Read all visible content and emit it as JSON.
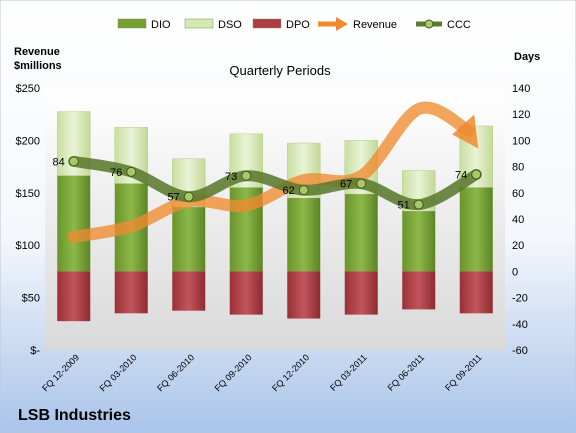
{
  "chart_data": {
    "type": "bar",
    "title": "Quarterly Periods",
    "company": "LSB Industries",
    "left_axis_label_line1": "Revenue",
    "left_axis_label_line2": "$millions",
    "right_axis_label": "Days",
    "categories": [
      "FQ 12-2009",
      "FQ 03-2010",
      "FQ 06-2010",
      "FQ 09-2010",
      "FQ 12-2010",
      "FQ 03-2011",
      "FQ 06-2011",
      "FQ 09-2011"
    ],
    "left_ticks": [
      "$-",
      "$50",
      "$100",
      "$150",
      "$200",
      "$250"
    ],
    "left_tick_values": [
      0,
      50,
      100,
      150,
      200,
      250
    ],
    "right_ticks": [
      "-60",
      "-40",
      "-20",
      "0",
      "20",
      "40",
      "60",
      "80",
      "100",
      "120",
      "140"
    ],
    "right_tick_values": [
      -60,
      -40,
      -20,
      0,
      20,
      40,
      60,
      80,
      100,
      120,
      140
    ],
    "ylim_left": [
      0,
      250
    ],
    "ylim_right": [
      -60,
      140
    ],
    "legend_position": "top",
    "series": [
      {
        "name": "DIO",
        "axis": "right",
        "kind": "bar",
        "color": "#77a033",
        "values": [
          73,
          67,
          49,
          64,
          56,
          59,
          46,
          64
        ]
      },
      {
        "name": "DSO",
        "axis": "right",
        "kind": "bar",
        "color": "#d5e8b0",
        "values": [
          49,
          43,
          37,
          41,
          42,
          41,
          31,
          47
        ]
      },
      {
        "name": "DPO",
        "axis": "right",
        "kind": "bar",
        "color": "#b03c43",
        "values": [
          -38,
          -32,
          -30,
          -33,
          -36,
          -33,
          -29,
          -32
        ]
      },
      {
        "name": "Revenue",
        "axis": "left",
        "kind": "line",
        "color": "#f08a30",
        "values": [
          108,
          118,
          142,
          138,
          162,
          166,
          230,
          198
        ]
      },
      {
        "name": "CCC",
        "axis": "right",
        "kind": "line",
        "color": "#5b7a2e",
        "values": [
          84,
          76,
          57,
          73,
          62,
          67,
          51,
          74
        ]
      }
    ],
    "ccc_labels": [
      "84",
      "76",
      "57",
      "73",
      "62",
      "67",
      "51",
      "74"
    ],
    "grid": false
  }
}
